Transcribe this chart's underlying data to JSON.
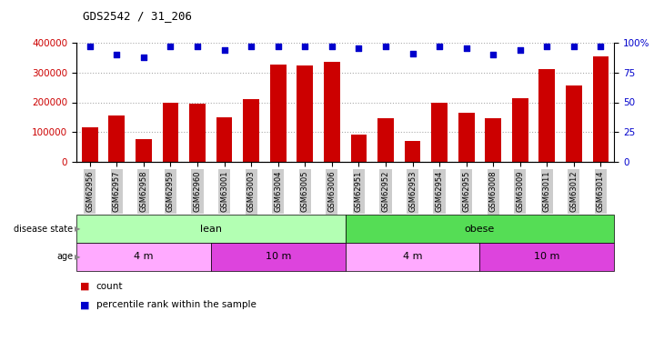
{
  "title": "GDS2542 / 31_206",
  "samples": [
    "GSM62956",
    "GSM62957",
    "GSM62958",
    "GSM62959",
    "GSM62960",
    "GSM63001",
    "GSM63003",
    "GSM63004",
    "GSM63005",
    "GSM63006",
    "GSM62951",
    "GSM62952",
    "GSM62953",
    "GSM62954",
    "GSM62955",
    "GSM63008",
    "GSM63009",
    "GSM63011",
    "GSM63012",
    "GSM63014"
  ],
  "counts": [
    115000,
    155000,
    77000,
    200000,
    195000,
    150000,
    210000,
    328000,
    323000,
    335000,
    93000,
    148000,
    70000,
    200000,
    166000,
    148000,
    215000,
    310000,
    255000,
    355000
  ],
  "percentile_ranks": [
    97,
    90,
    88,
    97,
    97,
    94,
    97,
    97,
    97,
    97,
    95,
    97,
    91,
    97,
    95,
    90,
    94,
    97,
    97,
    97
  ],
  "bar_color": "#cc0000",
  "dot_color": "#0000cc",
  "ylim_left": [
    0,
    400000
  ],
  "ylim_right": [
    0,
    100
  ],
  "yticks_left": [
    0,
    100000,
    200000,
    300000,
    400000
  ],
  "ytick_labels_left": [
    "0",
    "100000",
    "200000",
    "300000",
    "400000"
  ],
  "yticks_right": [
    0,
    25,
    50,
    75,
    100
  ],
  "ytick_labels_right": [
    "0",
    "25",
    "50",
    "75",
    "100%"
  ],
  "disease_state_groups": [
    {
      "label": "lean",
      "start": 0,
      "end": 10,
      "color": "#b3ffb3"
    },
    {
      "label": "obese",
      "start": 10,
      "end": 20,
      "color": "#55dd55"
    }
  ],
  "age_groups": [
    {
      "label": "4 m",
      "start": 0,
      "end": 5,
      "color": "#ffaaff"
    },
    {
      "label": "10 m",
      "start": 5,
      "end": 10,
      "color": "#dd44dd"
    },
    {
      "label": "4 m",
      "start": 10,
      "end": 15,
      "color": "#ffaaff"
    },
    {
      "label": "10 m",
      "start": 15,
      "end": 20,
      "color": "#dd44dd"
    }
  ],
  "disease_state_label": "disease state",
  "age_label": "age",
  "legend_count_label": "count",
  "legend_pct_label": "percentile rank within the sample",
  "tick_label_color_left": "#cc0000",
  "tick_label_color_right": "#0000cc",
  "xtick_bgcolor": "#cccccc"
}
